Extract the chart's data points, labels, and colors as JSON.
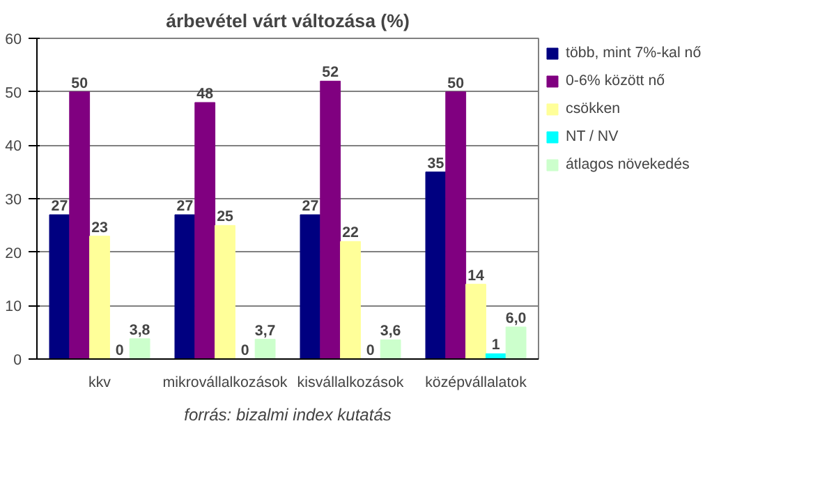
{
  "chart_data": {
    "type": "bar",
    "title": "árbevétel várt változása (%)",
    "categories": [
      "kkv",
      "mikrovállalkozások",
      "kisvállalkozások",
      "középvállalatok"
    ],
    "series": [
      {
        "name": "több, mint 7%-kal nő",
        "color": "#000080",
        "values": [
          27,
          27,
          27,
          35
        ],
        "value_labels": [
          "27",
          "27",
          "27",
          "35"
        ]
      },
      {
        "name": "0-6% között nő",
        "color": "#800080",
        "values": [
          50,
          48,
          52,
          50
        ],
        "value_labels": [
          "50",
          "48",
          "52",
          "50"
        ]
      },
      {
        "name": "csökken",
        "color": "#ffff99",
        "values": [
          23,
          25,
          22,
          14
        ],
        "value_labels": [
          "23",
          "25",
          "22",
          "14"
        ]
      },
      {
        "name": "NT / NV",
        "color": "#00ffff",
        "values": [
          0,
          0,
          0,
          1
        ],
        "value_labels": [
          "0",
          "0",
          "0",
          "1"
        ]
      },
      {
        "name": "átlagos növekedés",
        "color": "#ccffcc",
        "values": [
          3.8,
          3.7,
          3.6,
          6.0
        ],
        "value_labels": [
          "3,8",
          "3,7",
          "3,6",
          "6,0"
        ]
      }
    ],
    "ylim": [
      0,
      60
    ],
    "yticks": [
      0,
      10,
      20,
      30,
      40,
      50,
      60
    ],
    "grid": "y",
    "legend": "right",
    "annotations": [
      "forrás: bizalmi index kutatás"
    ]
  }
}
